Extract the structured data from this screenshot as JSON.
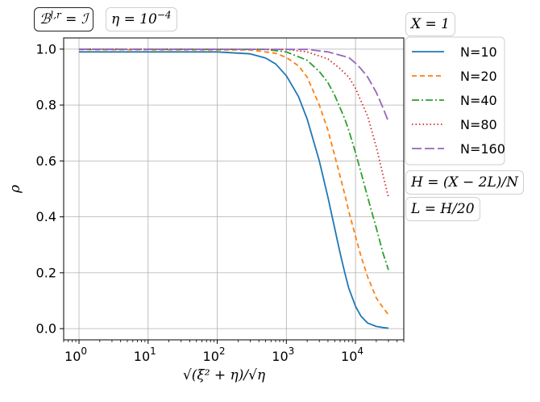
{
  "chart_data": {
    "type": "line",
    "x_scale": "log",
    "xlim": [
      0.6,
      50000
    ],
    "ylim": [
      -0.04,
      1.04
    ],
    "grid": true,
    "xlabel": "√(ξ² + η)/√η",
    "ylabel": "ρ",
    "x_ticks": [
      {
        "value": 1,
        "label": "10",
        "exp": "0"
      },
      {
        "value": 10,
        "label": "10",
        "exp": "1"
      },
      {
        "value": 100,
        "label": "10",
        "exp": "2"
      },
      {
        "value": 1000,
        "label": "10",
        "exp": "3"
      },
      {
        "value": 10000,
        "label": "10",
        "exp": "4"
      }
    ],
    "y_ticks": [
      {
        "value": 0.0,
        "label": "0.0"
      },
      {
        "value": 0.2,
        "label": "0.2"
      },
      {
        "value": 0.4,
        "label": "0.4"
      },
      {
        "value": 0.6,
        "label": "0.6"
      },
      {
        "value": 0.8,
        "label": "0.8"
      },
      {
        "value": 1.0,
        "label": "1.0"
      }
    ],
    "legend_placement": "outside-right",
    "series": [
      {
        "name": "N=10",
        "color": "#1f77b4",
        "dash": "solid",
        "x": [
          1,
          100,
          300,
          500,
          700,
          1000,
          1500,
          2000,
          3000,
          4000,
          5000,
          6000,
          7000,
          8000,
          10000,
          12000,
          15000,
          20000,
          25000,
          30000
        ],
        "y": [
          0.99,
          0.99,
          0.983,
          0.968,
          0.947,
          0.905,
          0.83,
          0.75,
          0.6,
          0.47,
          0.36,
          0.27,
          0.2,
          0.145,
          0.08,
          0.045,
          0.02,
          0.008,
          0.004,
          0.002
        ]
      },
      {
        "name": "N=20",
        "color": "#ff7f0e",
        "dash": "6,4",
        "x": [
          1,
          300,
          700,
          1000,
          1500,
          2000,
          3000,
          4000,
          5000,
          6000,
          7000,
          8000,
          10000,
          12000,
          15000,
          20000,
          25000,
          30000
        ],
        "y": [
          0.998,
          0.997,
          0.985,
          0.97,
          0.94,
          0.9,
          0.8,
          0.71,
          0.62,
          0.545,
          0.48,
          0.42,
          0.33,
          0.26,
          0.185,
          0.11,
          0.075,
          0.05
        ]
      },
      {
        "name": "N=40",
        "color": "#2ca02c",
        "dash": "9,3,2,3",
        "x": [
          1,
          500,
          1000,
          2000,
          3000,
          4000,
          5000,
          6000,
          7000,
          8000,
          10000,
          12000,
          15000,
          20000,
          25000,
          30000
        ],
        "y": [
          1.0,
          0.999,
          0.99,
          0.96,
          0.92,
          0.88,
          0.835,
          0.79,
          0.75,
          0.71,
          0.63,
          0.56,
          0.47,
          0.36,
          0.27,
          0.21
        ]
      },
      {
        "name": "N=80",
        "color": "#d62728",
        "dash": "1.5,3",
        "x": [
          1,
          1000,
          2000,
          4000,
          6000,
          8000,
          10000,
          12000,
          15000,
          20000,
          25000,
          30000
        ],
        "y": [
          1.0,
          0.999,
          0.99,
          0.965,
          0.93,
          0.9,
          0.86,
          0.815,
          0.76,
          0.65,
          0.55,
          0.47
        ]
      },
      {
        "name": "N=160",
        "color": "#9467bd",
        "dash": "12,4",
        "x": [
          1,
          2000,
          4000,
          8000,
          10000,
          12000,
          15000,
          20000,
          25000,
          30000
        ],
        "y": [
          1.0,
          0.999,
          0.99,
          0.97,
          0.95,
          0.93,
          0.9,
          0.845,
          0.79,
          0.74
        ]
      }
    ],
    "annotations": [
      {
        "id": "bc",
        "text": "ℬ",
        "sup": "l,r",
        "suffix": " = ℐ"
      },
      {
        "id": "eta",
        "text": "η = 10",
        "sup": "−4",
        "suffix": ""
      },
      {
        "id": "X",
        "text": "X = 1",
        "sup": "",
        "suffix": ""
      },
      {
        "id": "H",
        "text": "H = (X − 2L)/N",
        "sup": "",
        "suffix": ""
      },
      {
        "id": "L",
        "text": "L = H/20",
        "sup": "",
        "suffix": ""
      }
    ]
  }
}
